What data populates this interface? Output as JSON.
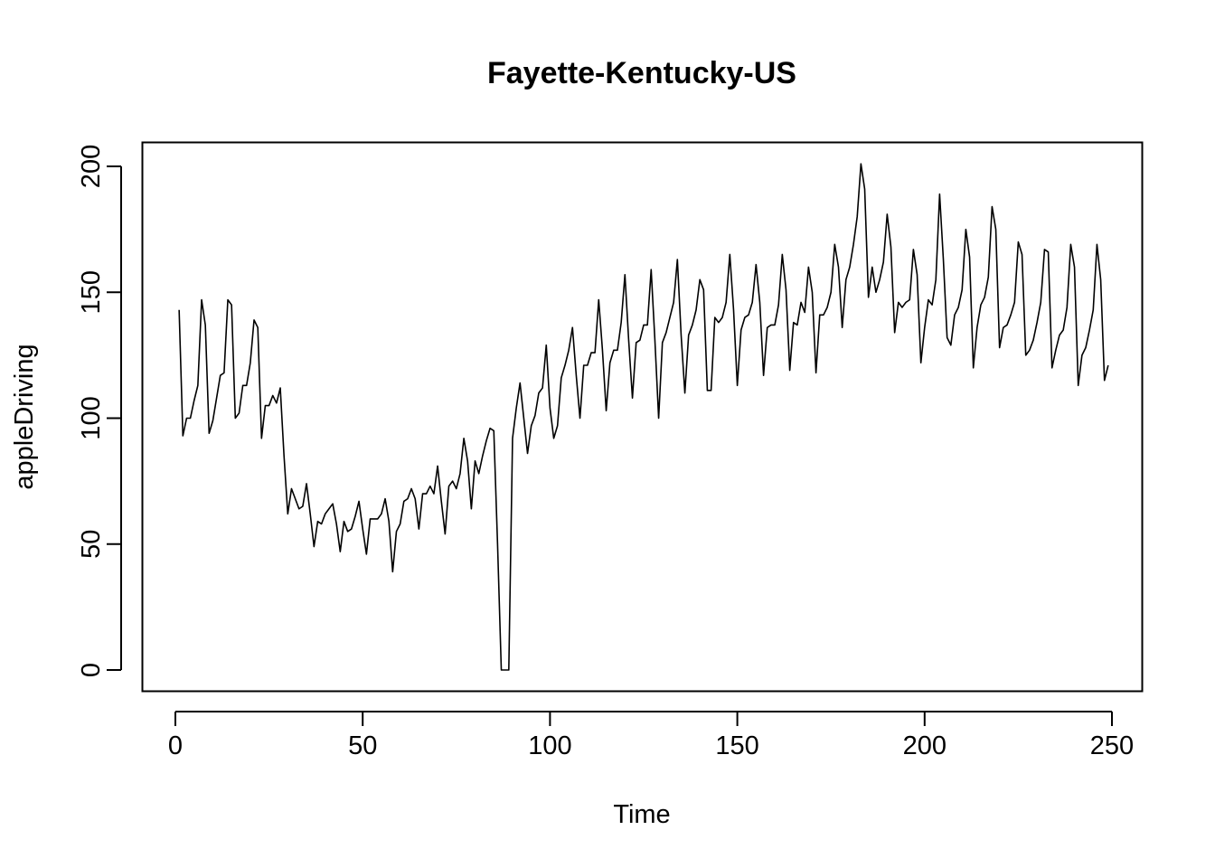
{
  "chart_data": {
    "type": "line",
    "title": "Fayette-Kentucky-US",
    "xlabel": "Time",
    "ylabel": "appleDriving",
    "xlim": [
      1,
      248
    ],
    "ylim": [
      0,
      201
    ],
    "xticks": [
      0,
      50,
      100,
      150,
      200,
      250
    ],
    "yticks": [
      0,
      50,
      100,
      150,
      200
    ],
    "xtick_labels": [
      "0",
      "50",
      "100",
      "150",
      "200",
      "250"
    ],
    "ytick_labels": [
      "0",
      "50",
      "100",
      "150",
      "200"
    ],
    "grid": false,
    "line_color": "#000000",
    "series": [
      {
        "x_start": 1,
        "values": [
          143,
          93,
          100,
          100,
          107,
          113,
          147,
          137,
          94,
          99,
          108,
          117,
          118,
          147,
          145,
          100,
          102,
          113,
          113,
          122,
          139,
          136,
          92,
          105,
          105,
          109,
          106,
          112,
          85,
          62,
          72,
          68,
          64,
          65,
          74,
          62,
          49,
          59,
          58,
          62,
          64,
          66,
          58,
          47,
          59,
          55,
          56,
          61,
          67,
          56,
          46,
          60,
          60,
          60,
          62,
          68,
          59,
          39,
          55,
          58,
          67,
          68,
          72,
          68,
          56,
          70,
          70,
          73,
          70,
          81,
          67,
          54,
          73,
          75,
          72,
          78,
          92,
          83,
          64,
          83,
          78,
          85,
          91,
          96,
          95,
          50,
          0,
          0,
          0,
          92,
          104,
          114,
          100,
          86,
          97,
          101,
          110,
          112,
          129,
          104,
          92,
          97,
          116,
          121,
          127,
          136,
          117,
          100,
          121,
          121,
          126,
          126,
          147,
          127,
          103,
          122,
          127,
          127,
          138,
          157,
          131,
          108,
          130,
          131,
          137,
          137,
          159,
          131,
          100,
          130,
          134,
          140,
          146,
          163,
          133,
          110,
          133,
          137,
          143,
          155,
          151,
          111,
          111,
          140,
          138,
          140,
          146,
          165,
          143,
          113,
          135,
          140,
          141,
          146,
          161,
          146,
          117,
          136,
          137,
          137,
          145,
          165,
          151,
          119,
          138,
          137,
          146,
          142,
          160,
          150,
          118,
          141,
          141,
          144,
          150,
          169,
          160,
          136,
          155,
          160,
          169,
          180,
          201,
          191,
          148,
          160,
          150,
          155,
          162,
          181,
          168,
          134,
          146,
          144,
          146,
          147,
          167,
          157,
          122,
          136,
          147,
          145,
          155,
          189,
          163,
          132,
          129,
          141,
          144,
          151,
          175,
          164,
          120,
          136,
          145,
          148,
          156,
          184,
          175,
          128,
          136,
          137,
          141,
          146,
          170,
          165,
          125,
          127,
          131,
          138,
          146,
          167,
          166,
          120,
          127,
          133,
          135,
          144,
          169,
          160,
          113,
          125,
          128,
          135,
          143,
          169,
          155,
          115,
          121
        ]
      }
    ]
  }
}
